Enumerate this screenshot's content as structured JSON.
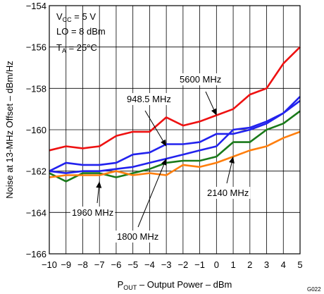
{
  "chart_data": {
    "type": "line",
    "xlabel_main": "P",
    "xlabel_sub": "OUT",
    "xlabel_rest": " – Output Power – dBm",
    "ylabel": "Noise at 13-MHz Offset – dBm/Hz",
    "xlim": [
      -10,
      5
    ],
    "ylim": [
      -166,
      -154
    ],
    "x_ticks": [
      -10,
      -9,
      -8,
      -7,
      -6,
      -5,
      -4,
      -3,
      -2,
      -1,
      0,
      1,
      2,
      3,
      4,
      5
    ],
    "x_tick_labels": [
      "−10",
      "−9",
      "−8",
      "−7",
      "−6",
      "−5",
      "−4",
      "−3",
      "−2",
      "−1",
      "0",
      "1",
      "2",
      "3",
      "4",
      "5"
    ],
    "y_ticks": [
      -166,
      -164,
      -162,
      -160,
      -158,
      -156,
      -154
    ],
    "y_tick_labels": [
      "−166",
      "−164",
      "−162",
      "−160",
      "−158",
      "−156",
      "−154"
    ],
    "grid": true,
    "conditions": [
      {
        "main": "V",
        "sub": "CC",
        "rest": " =  5 V"
      },
      {
        "main": "LO = 8 dBm",
        "sub": "",
        "rest": ""
      },
      {
        "main": "T",
        "sub": "A",
        "rest": " = 25°C"
      }
    ],
    "figure_id": "G022",
    "x": [
      -10,
      -9,
      -8,
      -7,
      -6,
      -5,
      -4,
      -3,
      -2,
      -1,
      0,
      1,
      2,
      3,
      4,
      5
    ],
    "series": [
      {
        "name": "5600 MHz",
        "color": "#ee1111",
        "values": [
          -161.0,
          -160.8,
          -160.9,
          -160.8,
          -160.3,
          -160.1,
          -160.1,
          -159.4,
          -159.8,
          -159.6,
          -159.3,
          -159.0,
          -158.3,
          -158.0,
          -156.8,
          -156.0
        ],
        "label_anchor": [
          0,
          -159.3
        ]
      },
      {
        "name": "948.5 MHz",
        "color": "#2222ee",
        "values": [
          -162.0,
          -161.6,
          -161.7,
          -161.7,
          -161.6,
          -161.2,
          -161.1,
          -160.7,
          -160.7,
          -160.6,
          -160.2,
          -160.2,
          -160.0,
          -159.7,
          -159.2,
          -158.4
        ],
        "label_anchor": [
          -3,
          -160.8
        ]
      },
      {
        "name": "1960 MHz",
        "color": "#1a7a1a",
        "values": [
          -162.1,
          -162.5,
          -162.1,
          -162.1,
          -162.3,
          -162.1,
          -161.9,
          -161.6,
          -161.5,
          -161.5,
          -161.3,
          -160.6,
          -160.6,
          -160.0,
          -159.7,
          -159.1
        ],
        "label_anchor": [
          -7,
          -162.5
        ]
      },
      {
        "name": "1800 MHz",
        "color": "#2222ee",
        "values": [
          -162.0,
          -162.1,
          -162.0,
          -162.0,
          -161.9,
          -161.8,
          -161.6,
          -161.4,
          -161.2,
          -161.0,
          -160.8,
          -160.0,
          -159.9,
          -159.6,
          -159.2,
          -158.6
        ],
        "label_anchor": [
          -3,
          -161.4
        ]
      },
      {
        "name": "2140 MHz",
        "color": "#ff7f0e",
        "values": [
          -162.3,
          -162.2,
          -162.2,
          -162.2,
          -162.0,
          -162.2,
          -162.1,
          -162.2,
          -161.7,
          -161.8,
          -161.6,
          -161.3,
          -161.0,
          -160.8,
          -160.4,
          -160.1
        ],
        "label_anchor": [
          1,
          -161.3
        ]
      }
    ]
  }
}
